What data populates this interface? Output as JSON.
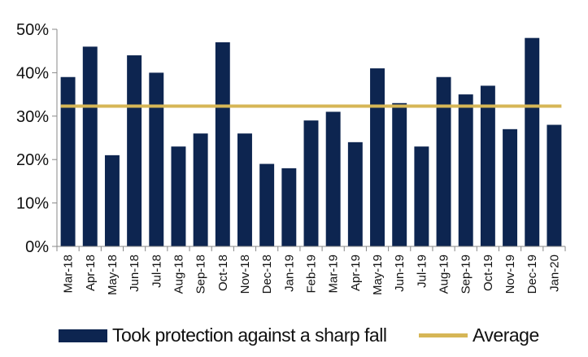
{
  "chart_data": {
    "type": "bar",
    "categories": [
      "Mar-18",
      "Apr-18",
      "May-18",
      "Jun-18",
      "Jul-18",
      "Aug-18",
      "Sep-18",
      "Oct-18",
      "Nov-18",
      "Dec-18",
      "Jan-19",
      "Feb-19",
      "Mar-19",
      "Apr-19",
      "May-19",
      "Jun-19",
      "Jul-19",
      "Aug-19",
      "Sep-19",
      "Oct-19",
      "Nov-19",
      "Dec-19",
      "Jan-20"
    ],
    "series": [
      {
        "name": "Took protection against a sharp fall",
        "values": [
          39,
          46,
          21,
          44,
          40,
          23,
          26,
          47,
          26,
          19,
          18,
          29,
          31,
          24,
          41,
          33,
          23,
          39,
          35,
          37,
          27,
          48,
          28
        ]
      }
    ],
    "average": {
      "name": "Average",
      "value": 32.3
    },
    "ylim": [
      0,
      50
    ],
    "yticks": [
      "0%",
      "10%",
      "20%",
      "30%",
      "40%",
      "50%"
    ],
    "grid": false,
    "legend_position": "bottom",
    "colors": {
      "bar": "#0d2550",
      "average": "#d6b656",
      "axis": "#888888"
    }
  },
  "legend": {
    "bar_label": "Took protection against a sharp fall",
    "line_label": "Average"
  }
}
